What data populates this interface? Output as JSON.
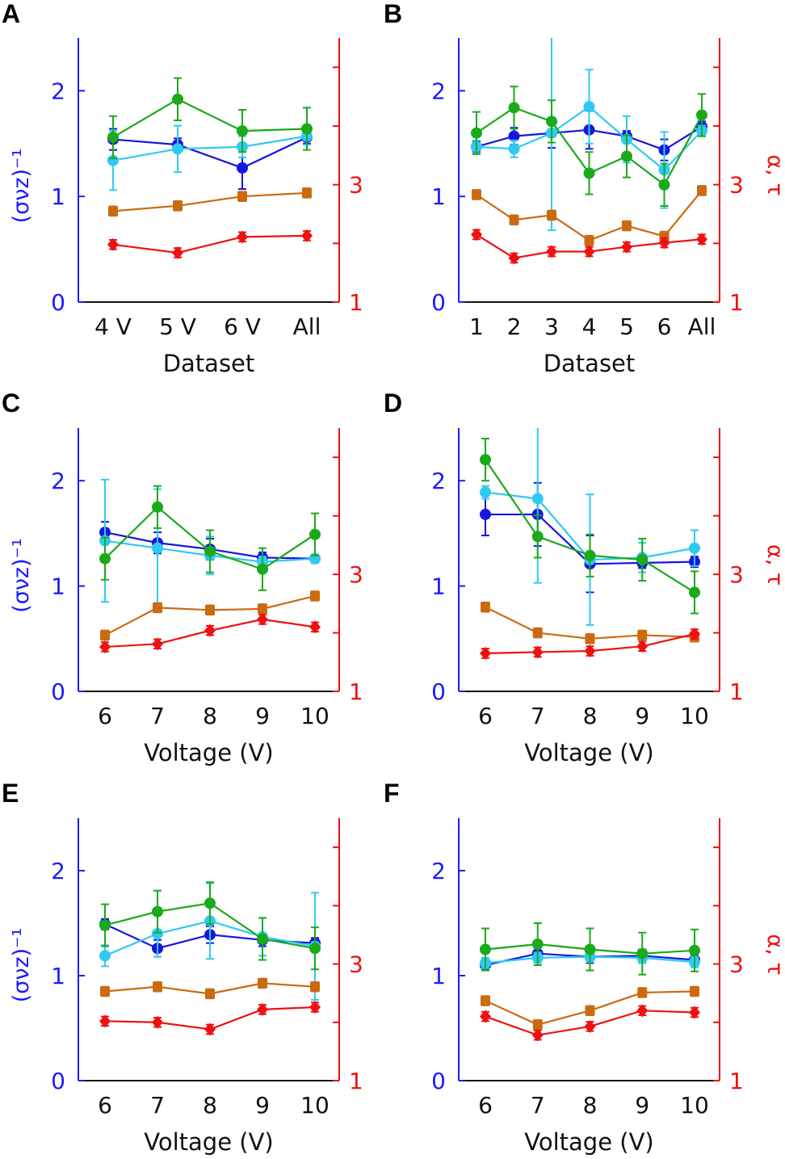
{
  "colors": {
    "left_axis": "#1a1aff",
    "right_axis": "#ee1111",
    "series_dark_blue": "#1616e0",
    "series_light_blue": "#2fcaf0",
    "series_green": "#1aaa1a",
    "series_orange": "#cc6a10",
    "series_red": "#ee1111"
  },
  "chart_data": [
    {
      "panel": "A",
      "type": "line",
      "xlabel": "Dataset",
      "ylabel_left": "(σνz)⁻¹",
      "ylabel_right": "",
      "categories": [
        "4 V",
        "5 V",
        "6 V",
        "All"
      ],
      "ylim_left": [
        0,
        2.5
      ],
      "yticks_left": [
        "0",
        "1",
        "2"
      ],
      "ylim_right": [
        1,
        5.5
      ],
      "yticks_right": [
        "1",
        "3"
      ],
      "series": [
        {
          "axis": "left",
          "marker": "circle",
          "color": "#1616e0",
          "values": [
            1.54,
            1.49,
            1.27,
            1.56
          ],
          "errors": [
            0.1,
            0.06,
            0.2,
            0.06
          ]
        },
        {
          "axis": "left",
          "marker": "circle",
          "color": "#2fcaf0",
          "values": [
            1.34,
            1.45,
            1.47,
            1.57
          ],
          "errors": [
            0.28,
            0.22,
            0.1,
            0.08
          ]
        },
        {
          "axis": "left",
          "marker": "circle",
          "color": "#1aaa1a",
          "values": [
            1.56,
            1.92,
            1.62,
            1.64
          ],
          "errors": [
            0.2,
            0.2,
            0.2,
            0.2
          ]
        },
        {
          "axis": "right",
          "marker": "square",
          "color": "#cc6a10",
          "values": [
            2.55,
            2.64,
            2.8,
            2.86
          ],
          "errors": [
            0.08,
            0.08,
            0.08,
            0.08
          ]
        },
        {
          "axis": "right",
          "marker": "diamond",
          "color": "#ee1111",
          "values": [
            1.98,
            1.84,
            2.11,
            2.13
          ],
          "errors": [
            0.08,
            0.08,
            0.08,
            0.08
          ]
        }
      ]
    },
    {
      "panel": "B",
      "type": "line",
      "xlabel": "Dataset",
      "ylabel_left": "",
      "ylabel_right": "α, τ",
      "categories": [
        "1",
        "2",
        "3",
        "4",
        "5",
        "6",
        "All"
      ],
      "ylim_left": [
        0,
        2.5
      ],
      "yticks_left": [
        "0",
        "1",
        "2"
      ],
      "ylim_right": [
        1,
        5.5
      ],
      "yticks_right": [
        "1",
        "3"
      ],
      "series": [
        {
          "axis": "left",
          "marker": "circle",
          "color": "#1616e0",
          "values": [
            1.47,
            1.57,
            1.6,
            1.63,
            1.57,
            1.44,
            1.66
          ],
          "errors": [
            0.05,
            0.08,
            0.14,
            0.18,
            0.05,
            0.1,
            0.05
          ]
        },
        {
          "axis": "left",
          "marker": "circle",
          "color": "#2fcaf0",
          "values": [
            1.47,
            1.45,
            1.6,
            1.85,
            1.54,
            1.25,
            1.62
          ],
          "errors": [
            0.06,
            0.08,
            0.92,
            0.35,
            0.22,
            0.36,
            0.05
          ]
        },
        {
          "axis": "left",
          "marker": "circle",
          "color": "#1aaa1a",
          "values": [
            1.6,
            1.84,
            1.71,
            1.22,
            1.38,
            1.11,
            1.77
          ],
          "errors": [
            0.2,
            0.2,
            0.2,
            0.2,
            0.2,
            0.2,
            0.2
          ]
        },
        {
          "axis": "right",
          "marker": "square",
          "color": "#cc6a10",
          "values": [
            2.83,
            2.4,
            2.48,
            2.05,
            2.3,
            2.12,
            2.9
          ],
          "errors": [
            0.08,
            0.08,
            0.08,
            0.08,
            0.08,
            0.08,
            0.08
          ]
        },
        {
          "axis": "right",
          "marker": "diamond",
          "color": "#ee1111",
          "values": [
            2.15,
            1.75,
            1.86,
            1.86,
            1.94,
            2.01,
            2.07
          ],
          "errors": [
            0.08,
            0.08,
            0.08,
            0.08,
            0.08,
            0.08,
            0.08
          ]
        }
      ]
    },
    {
      "panel": "C",
      "type": "line",
      "xlabel": "Voltage (V)",
      "ylabel_left": "(σνz)⁻¹",
      "ylabel_right": "",
      "categories": [
        "6",
        "7",
        "8",
        "9",
        "10"
      ],
      "ylim_left": [
        0,
        2.5
      ],
      "yticks_left": [
        "0",
        "1",
        "2"
      ],
      "ylim_right": [
        1,
        5.5
      ],
      "yticks_right": [
        "1",
        "3"
      ],
      "series": [
        {
          "axis": "left",
          "marker": "circle",
          "color": "#1616e0",
          "values": [
            1.51,
            1.41,
            1.35,
            1.27,
            1.26
          ],
          "errors": [
            0.1,
            0.1,
            0.1,
            0.05,
            0.04
          ]
        },
        {
          "axis": "left",
          "marker": "circle",
          "color": "#2fcaf0",
          "values": [
            1.43,
            1.36,
            1.29,
            1.23,
            1.26
          ],
          "errors": [
            0.58,
            0.56,
            0.18,
            0.05,
            0.04
          ]
        },
        {
          "axis": "left",
          "marker": "circle",
          "color": "#1aaa1a",
          "values": [
            1.26,
            1.75,
            1.33,
            1.16,
            1.49
          ],
          "errors": [
            0.2,
            0.2,
            0.2,
            0.2,
            0.2
          ]
        },
        {
          "axis": "right",
          "marker": "square",
          "color": "#cc6a10",
          "values": [
            1.96,
            2.43,
            2.39,
            2.41,
            2.63
          ],
          "errors": [
            0.08,
            0.08,
            0.08,
            0.08,
            0.08
          ]
        },
        {
          "axis": "right",
          "marker": "diamond",
          "color": "#ee1111",
          "values": [
            1.76,
            1.81,
            2.04,
            2.23,
            2.1
          ],
          "errors": [
            0.08,
            0.08,
            0.08,
            0.08,
            0.08
          ]
        }
      ]
    },
    {
      "panel": "D",
      "type": "line",
      "xlabel": "Voltage (V)",
      "ylabel_left": "",
      "ylabel_right": "α, τ",
      "categories": [
        "6",
        "7",
        "8",
        "9",
        "10"
      ],
      "ylim_left": [
        0,
        2.5
      ],
      "yticks_left": [
        "0",
        "1",
        "2"
      ],
      "ylim_right": [
        1,
        5.5
      ],
      "yticks_right": [
        "1",
        "3"
      ],
      "series": [
        {
          "axis": "left",
          "marker": "circle",
          "color": "#1616e0",
          "values": [
            1.68,
            1.68,
            1.21,
            1.22,
            1.23
          ],
          "errors": [
            0.2,
            0.3,
            0.27,
            0.05,
            0.05
          ]
        },
        {
          "axis": "left",
          "marker": "circle",
          "color": "#2fcaf0",
          "values": [
            1.89,
            1.83,
            1.25,
            1.27,
            1.36
          ],
          "errors": [
            0.06,
            0.8,
            0.62,
            0.14,
            0.17
          ]
        },
        {
          "axis": "left",
          "marker": "circle",
          "color": "#1aaa1a",
          "values": [
            2.2,
            1.47,
            1.29,
            1.25,
            0.94
          ],
          "errors": [
            0.2,
            0.2,
            0.2,
            0.2,
            0.2
          ]
        },
        {
          "axis": "right",
          "marker": "square",
          "color": "#cc6a10",
          "values": [
            2.44,
            2.0,
            1.9,
            1.96,
            1.93
          ],
          "errors": [
            0.08,
            0.08,
            0.08,
            0.08,
            0.08
          ]
        },
        {
          "axis": "right",
          "marker": "diamond",
          "color": "#ee1111",
          "values": [
            1.65,
            1.67,
            1.69,
            1.77,
            1.98
          ],
          "errors": [
            0.08,
            0.08,
            0.08,
            0.08,
            0.08
          ]
        }
      ]
    },
    {
      "panel": "E",
      "type": "line",
      "xlabel": "Voltage (V)",
      "ylabel_left": "(σνz)⁻¹",
      "ylabel_right": "",
      "categories": [
        "6",
        "7",
        "8",
        "9",
        "10"
      ],
      "ylim_left": [
        0,
        2.5
      ],
      "yticks_left": [
        "0",
        "1",
        "2"
      ],
      "ylim_right": [
        1,
        5.5
      ],
      "yticks_right": [
        "1",
        "3"
      ],
      "series": [
        {
          "axis": "left",
          "marker": "circle",
          "color": "#1616e0",
          "values": [
            1.49,
            1.26,
            1.39,
            1.34,
            1.31
          ],
          "errors": [
            0.05,
            0.08,
            0.08,
            0.06,
            0.05
          ]
        },
        {
          "axis": "left",
          "marker": "circle",
          "color": "#2fcaf0",
          "values": [
            1.19,
            1.4,
            1.52,
            1.37,
            1.28
          ],
          "errors": [
            0.1,
            0.22,
            0.36,
            0.18,
            0.51
          ]
        },
        {
          "axis": "left",
          "marker": "circle",
          "color": "#1aaa1a",
          "values": [
            1.48,
            1.61,
            1.69,
            1.35,
            1.26
          ],
          "errors": [
            0.2,
            0.2,
            0.2,
            0.2,
            0.2
          ]
        },
        {
          "axis": "right",
          "marker": "square",
          "color": "#cc6a10",
          "values": [
            2.53,
            2.61,
            2.49,
            2.67,
            2.61
          ],
          "errors": [
            0.08,
            0.08,
            0.08,
            0.08,
            0.08
          ]
        },
        {
          "axis": "right",
          "marker": "diamond",
          "color": "#ee1111",
          "values": [
            2.02,
            2.0,
            1.88,
            2.22,
            2.26
          ],
          "errors": [
            0.08,
            0.08,
            0.08,
            0.08,
            0.08
          ]
        }
      ]
    },
    {
      "panel": "F",
      "type": "line",
      "xlabel": "Voltage (V)",
      "ylabel_left": "",
      "ylabel_right": "α, τ",
      "categories": [
        "6",
        "7",
        "8",
        "9",
        "10"
      ],
      "ylim_left": [
        0,
        2.5
      ],
      "yticks_left": [
        "0",
        "1",
        "2"
      ],
      "ylim_right": [
        1,
        5.5
      ],
      "yticks_right": [
        "1",
        "3"
      ],
      "series": [
        {
          "axis": "left",
          "marker": "circle",
          "color": "#1616e0",
          "values": [
            1.1,
            1.21,
            1.18,
            1.19,
            1.15
          ],
          "errors": [
            0.04,
            0.06,
            0.06,
            0.06,
            0.05
          ]
        },
        {
          "axis": "left",
          "marker": "circle",
          "color": "#2fcaf0",
          "values": [
            1.12,
            1.17,
            1.18,
            1.17,
            1.13
          ],
          "errors": [
            0.05,
            0.05,
            0.05,
            0.05,
            0.05
          ]
        },
        {
          "axis": "left",
          "marker": "circle",
          "color": "#1aaa1a",
          "values": [
            1.25,
            1.3,
            1.25,
            1.21,
            1.24
          ],
          "errors": [
            0.2,
            0.2,
            0.2,
            0.2,
            0.2
          ]
        },
        {
          "axis": "right",
          "marker": "square",
          "color": "#cc6a10",
          "values": [
            2.37,
            1.96,
            2.2,
            2.51,
            2.53
          ],
          "errors": [
            0.08,
            0.08,
            0.08,
            0.08,
            0.08
          ]
        },
        {
          "axis": "right",
          "marker": "diamond",
          "color": "#ee1111",
          "values": [
            2.1,
            1.78,
            1.93,
            2.2,
            2.17
          ],
          "errors": [
            0.08,
            0.08,
            0.08,
            0.08,
            0.08
          ]
        }
      ]
    }
  ]
}
